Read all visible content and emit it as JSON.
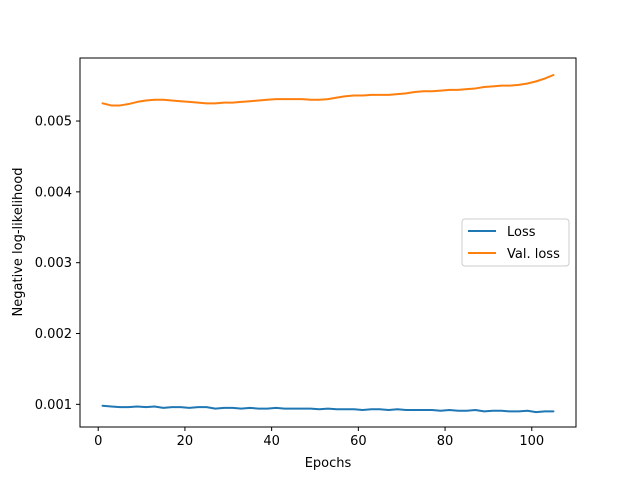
{
  "chart_data": {
    "type": "line",
    "xlabel": "Epochs",
    "ylabel": "Negative log-likelihood",
    "xlim": [
      -4.2,
      110.2
    ],
    "ylim": [
      0.00068,
      0.00589
    ],
    "xticks": [
      0,
      20,
      40,
      60,
      80,
      100
    ],
    "xtick_labels": [
      "0",
      "20",
      "40",
      "60",
      "80",
      "100"
    ],
    "yticks": [
      0.001,
      0.002,
      0.003,
      0.004,
      0.005
    ],
    "ytick_labels": [
      "0.001",
      "0.002",
      "0.003",
      "0.004",
      "0.005"
    ],
    "grid": false,
    "legend_position": "center-right",
    "series": [
      {
        "name": "Loss",
        "color": "#1f77b4",
        "x": [
          1,
          3,
          5,
          7,
          9,
          11,
          13,
          15,
          17,
          19,
          21,
          23,
          25,
          27,
          29,
          31,
          33,
          35,
          37,
          39,
          41,
          43,
          45,
          47,
          49,
          51,
          53,
          55,
          57,
          59,
          61,
          63,
          65,
          67,
          69,
          71,
          73,
          75,
          77,
          79,
          81,
          83,
          85,
          87,
          89,
          91,
          93,
          95,
          97,
          99,
          101,
          103,
          105
        ],
        "y": [
          0.00098,
          0.00097,
          0.00096,
          0.00096,
          0.00097,
          0.00096,
          0.00097,
          0.00095,
          0.00096,
          0.00096,
          0.00095,
          0.00096,
          0.00096,
          0.00094,
          0.00095,
          0.00095,
          0.00094,
          0.00095,
          0.00094,
          0.00094,
          0.00095,
          0.00094,
          0.00094,
          0.00094,
          0.00094,
          0.00093,
          0.00094,
          0.00093,
          0.00093,
          0.00093,
          0.00092,
          0.00093,
          0.00093,
          0.00092,
          0.00093,
          0.00092,
          0.00092,
          0.00092,
          0.00092,
          0.00091,
          0.00092,
          0.00091,
          0.00091,
          0.00092,
          0.0009,
          0.00091,
          0.00091,
          0.0009,
          0.0009,
          0.00091,
          0.00089,
          0.0009,
          0.0009
        ]
      },
      {
        "name": "Val. loss",
        "color": "#ff7f0e",
        "x": [
          1,
          3,
          5,
          7,
          9,
          11,
          13,
          15,
          17,
          19,
          21,
          23,
          25,
          27,
          29,
          31,
          33,
          35,
          37,
          39,
          41,
          43,
          45,
          47,
          49,
          51,
          53,
          55,
          57,
          59,
          61,
          63,
          65,
          67,
          69,
          71,
          73,
          75,
          77,
          79,
          81,
          83,
          85,
          87,
          89,
          91,
          93,
          95,
          97,
          99,
          101,
          103,
          105
        ],
        "y": [
          0.00525,
          0.00522,
          0.00522,
          0.00524,
          0.00527,
          0.00529,
          0.0053,
          0.0053,
          0.00529,
          0.00528,
          0.00527,
          0.00526,
          0.00525,
          0.00525,
          0.00526,
          0.00526,
          0.00527,
          0.00528,
          0.00529,
          0.0053,
          0.00531,
          0.00531,
          0.00531,
          0.00531,
          0.0053,
          0.0053,
          0.00531,
          0.00533,
          0.00535,
          0.00536,
          0.00536,
          0.00537,
          0.00537,
          0.00537,
          0.00538,
          0.00539,
          0.00541,
          0.00542,
          0.00542,
          0.00543,
          0.00544,
          0.00544,
          0.00545,
          0.00546,
          0.00548,
          0.00549,
          0.0055,
          0.0055,
          0.00551,
          0.00553,
          0.00556,
          0.0056,
          0.00565
        ]
      }
    ]
  }
}
